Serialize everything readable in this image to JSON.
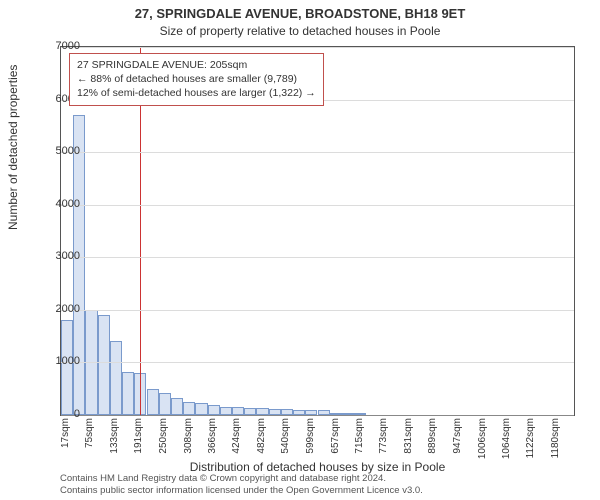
{
  "title_line1": "27, SPRINGDALE AVENUE, BROADSTONE, BH18 9ET",
  "title_line2": "Size of property relative to detached houses in Poole",
  "y_axis": {
    "label": "Number of detached properties",
    "min": 0,
    "max": 7000,
    "step": 1000,
    "ticks": [
      0,
      1000,
      2000,
      3000,
      4000,
      5000,
      6000,
      7000
    ]
  },
  "x_axis": {
    "label": "Distribution of detached houses by size in Poole",
    "ticks": [
      "17sqm",
      "75sqm",
      "133sqm",
      "191sqm",
      "250sqm",
      "308sqm",
      "366sqm",
      "424sqm",
      "482sqm",
      "540sqm",
      "599sqm",
      "657sqm",
      "715sqm",
      "773sqm",
      "831sqm",
      "889sqm",
      "947sqm",
      "1006sqm",
      "1064sqm",
      "1122sqm",
      "1180sqm"
    ]
  },
  "chart": {
    "type": "histogram",
    "bar_fill": "#d9e3f3",
    "bar_border": "#7a9acc",
    "grid_color": "#dcdcdc",
    "background": "#ffffff",
    "border_color": "#555555",
    "ref_line_color": "#cc3333",
    "bin_start": 17,
    "bin_width": 29,
    "n_bins": 42,
    "values": [
      1800,
      5700,
      2000,
      1900,
      1400,
      820,
      800,
      500,
      420,
      320,
      250,
      220,
      190,
      160,
      150,
      140,
      130,
      120,
      110,
      100,
      100,
      90,
      40,
      30,
      30,
      0,
      0,
      0,
      0,
      0,
      0,
      0,
      0,
      0,
      0,
      0,
      0,
      0,
      0,
      0,
      0,
      0
    ],
    "ref_sqm": 205
  },
  "annotation": {
    "line1": "27 SPRINGDALE AVENUE: 205sqm",
    "line2": "← 88% of detached houses are smaller (9,789)",
    "line3": "12% of semi-detached houses are larger (1,322) →",
    "border_color": "#c0504d"
  },
  "footer": {
    "line1": "Contains HM Land Registry data © Crown copyright and database right 2024.",
    "line2": "Contains public sector information licensed under the Open Government Licence v3.0."
  }
}
